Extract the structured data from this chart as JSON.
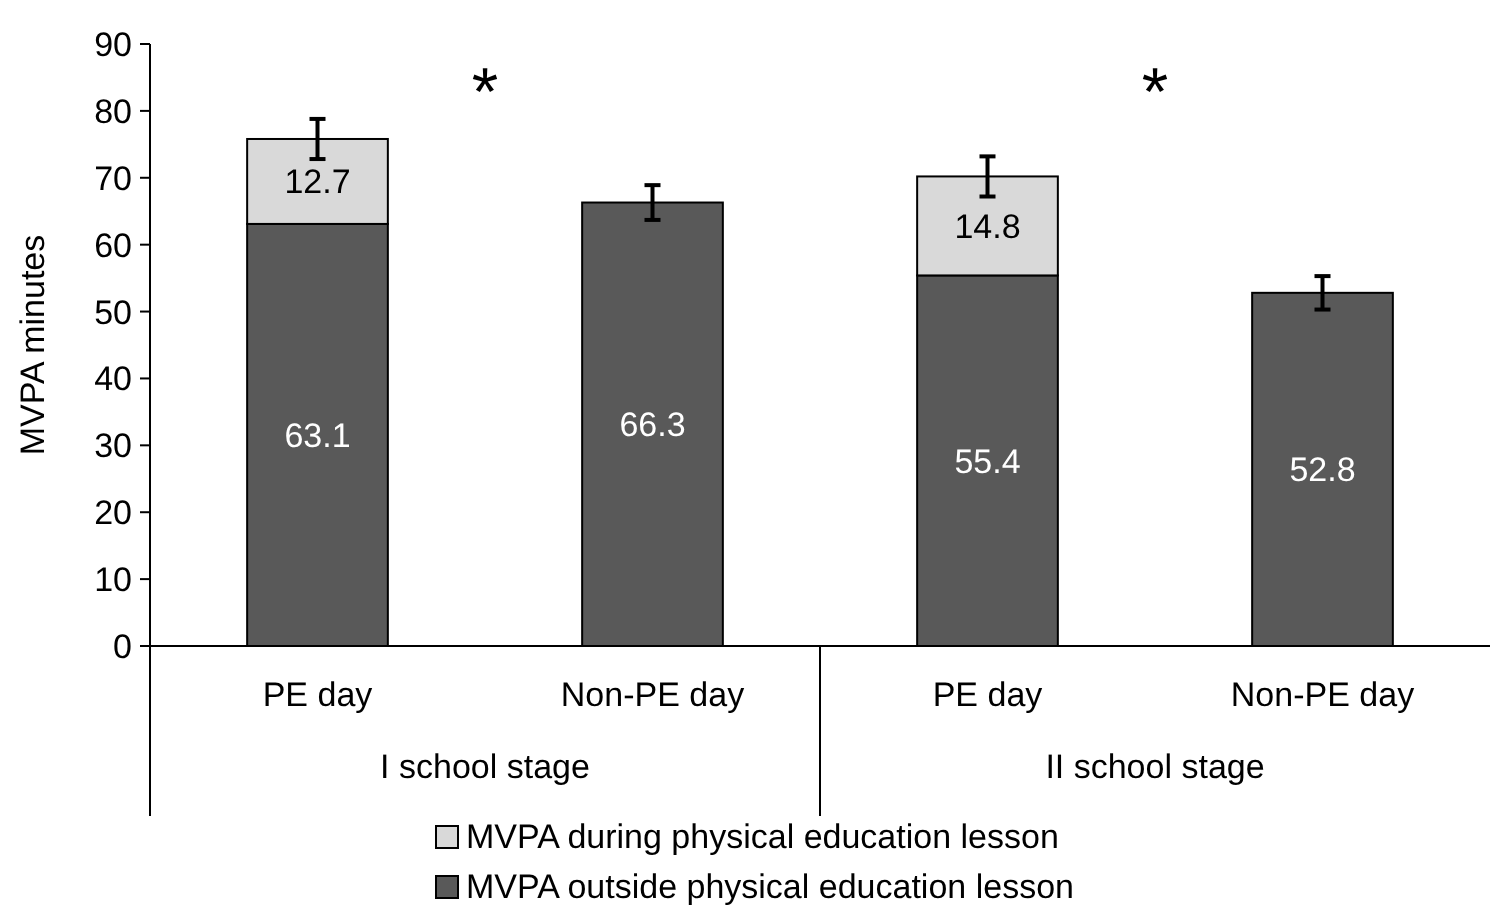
{
  "chart_data": {
    "type": "bar",
    "ylabel": "MVPA minutes",
    "categories": [
      "PE day",
      "Non-PE day",
      "PE day",
      "Non-PE day"
    ],
    "stacked": true,
    "ylim": [
      0,
      90
    ],
    "yticks": [
      0,
      10,
      20,
      30,
      40,
      50,
      60,
      70,
      80,
      90
    ],
    "grid": false,
    "legend": "bottom",
    "data_labels": true,
    "series": [
      {
        "name": "MVPA outside physical education lesson",
        "color": "#595959",
        "values": [
          63.1,
          66.3,
          55.4,
          52.8
        ],
        "errors": [
          null,
          2.6,
          null,
          2.5
        ]
      },
      {
        "name": "MVPA during physical education lesson",
        "color": "#d9d9d9",
        "values": [
          12.7,
          null,
          14.8,
          null
        ],
        "errors": [
          3,
          null,
          3,
          null
        ]
      }
    ],
    "annotations": [
      "*",
      "*",
      "I school stage",
      "II school stage"
    ]
  }
}
